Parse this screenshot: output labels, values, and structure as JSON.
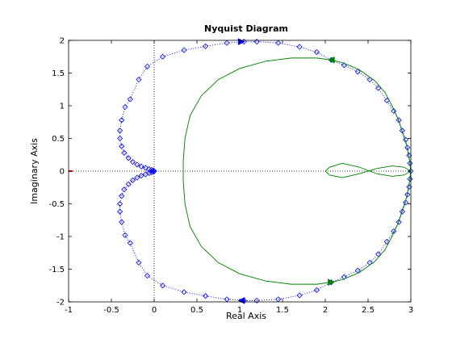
{
  "chart_data": {
    "type": "line",
    "title": "Nyquist Diagram",
    "xlabel": "Real Axis",
    "ylabel": "Imaginary Axis",
    "xlim": [
      -1,
      3
    ],
    "ylim": [
      -2,
      2
    ],
    "xticks": [
      -1,
      -0.5,
      0,
      0.5,
      1,
      1.5,
      2,
      2.5,
      3
    ],
    "xtick_labels": [
      "-1",
      "-0.5",
      "0",
      "0.5",
      "1",
      "1.5",
      "2",
      "2.5",
      "3"
    ],
    "yticks": [
      -2,
      -1.5,
      -1,
      -0.5,
      0,
      0.5,
      1,
      1.5,
      2
    ],
    "ytick_labels": [
      "-2",
      "-1.5",
      "-1",
      "-0.5",
      "0",
      "0.5",
      "1",
      "1.5",
      "2"
    ],
    "grid": false,
    "reference_lines": {
      "x": 0,
      "y": 0,
      "color": "#000000",
      "style": "dotted"
    },
    "critical_point": {
      "x": -1,
      "y": 0,
      "color": "#ff0000"
    },
    "colors": {
      "series_1": "#0000ff",
      "series_2": "#008000"
    },
    "series": [
      {
        "style": "dotted-diamond-markers",
        "color": "#0000ff",
        "points": [
          [
            0.0,
            0.0
          ],
          [
            -0.01,
            0.01
          ],
          [
            -0.03,
            0.02
          ],
          [
            -0.06,
            0.03
          ],
          [
            -0.1,
            0.05
          ],
          [
            -0.15,
            0.07
          ],
          [
            -0.2,
            0.1
          ],
          [
            -0.25,
            0.14
          ],
          [
            -0.3,
            0.2
          ],
          [
            -0.35,
            0.28
          ],
          [
            -0.38,
            0.38
          ],
          [
            -0.4,
            0.5
          ],
          [
            -0.4,
            0.62
          ],
          [
            -0.38,
            0.78
          ],
          [
            -0.34,
            0.98
          ],
          [
            -0.28,
            1.1
          ],
          [
            -0.18,
            1.4
          ],
          [
            -0.08,
            1.6
          ],
          [
            0.1,
            1.75
          ],
          [
            0.35,
            1.85
          ],
          [
            0.6,
            1.91
          ],
          [
            0.85,
            1.96
          ],
          [
            1.05,
            1.98
          ],
          [
            1.2,
            1.98
          ],
          [
            1.45,
            1.96
          ],
          [
            1.7,
            1.9
          ],
          [
            1.9,
            1.82
          ],
          [
            2.07,
            1.7
          ],
          [
            2.22,
            1.62
          ],
          [
            2.38,
            1.52
          ],
          [
            2.52,
            1.4
          ],
          [
            2.62,
            1.27
          ],
          [
            2.72,
            1.08
          ],
          [
            2.8,
            0.92
          ],
          [
            2.86,
            0.78
          ],
          [
            2.9,
            0.62
          ],
          [
            2.94,
            0.48
          ],
          [
            2.96,
            0.36
          ],
          [
            2.98,
            0.24
          ],
          [
            2.99,
            0.12
          ],
          [
            3.0,
            0.0
          ],
          [
            2.99,
            -0.12
          ],
          [
            2.98,
            -0.24
          ],
          [
            2.96,
            -0.36
          ],
          [
            2.94,
            -0.48
          ],
          [
            2.9,
            -0.62
          ],
          [
            2.86,
            -0.78
          ],
          [
            2.8,
            -0.92
          ],
          [
            2.72,
            -1.08
          ],
          [
            2.62,
            -1.27
          ],
          [
            2.52,
            -1.4
          ],
          [
            2.38,
            -1.52
          ],
          [
            2.22,
            -1.62
          ],
          [
            2.07,
            -1.7
          ],
          [
            1.9,
            -1.82
          ],
          [
            1.7,
            -1.9
          ],
          [
            1.45,
            -1.96
          ],
          [
            1.2,
            -1.98
          ],
          [
            1.05,
            -1.98
          ],
          [
            0.85,
            -1.96
          ],
          [
            0.6,
            -1.91
          ],
          [
            0.35,
            -1.85
          ],
          [
            0.1,
            -1.75
          ],
          [
            -0.08,
            -1.6
          ],
          [
            -0.18,
            -1.4
          ],
          [
            -0.28,
            -1.1
          ],
          [
            -0.34,
            -0.98
          ],
          [
            -0.38,
            -0.78
          ],
          [
            -0.4,
            -0.62
          ],
          [
            -0.4,
            -0.5
          ],
          [
            -0.38,
            -0.38
          ],
          [
            -0.35,
            -0.28
          ],
          [
            -0.3,
            -0.2
          ],
          [
            -0.25,
            -0.14
          ],
          [
            -0.2,
            -0.1
          ],
          [
            -0.15,
            -0.07
          ],
          [
            -0.1,
            -0.05
          ],
          [
            -0.06,
            -0.03
          ],
          [
            -0.03,
            -0.02
          ],
          [
            -0.01,
            -0.01
          ],
          [
            0.0,
            0.0
          ]
        ],
        "arrows": [
          {
            "x": 1.02,
            "y": 1.98,
            "direction": "right"
          },
          {
            "x": 1.02,
            "y": -1.98,
            "direction": "left"
          }
        ]
      },
      {
        "style": "solid",
        "color": "#008000",
        "points": [
          [
            3.0,
            0.0
          ],
          [
            2.98,
            0.2
          ],
          [
            2.95,
            0.4
          ],
          [
            2.9,
            0.6
          ],
          [
            2.85,
            0.8
          ],
          [
            2.78,
            1.0
          ],
          [
            2.7,
            1.2
          ],
          [
            2.58,
            1.38
          ],
          [
            2.4,
            1.55
          ],
          [
            2.2,
            1.66
          ],
          [
            2.07,
            1.7
          ],
          [
            1.9,
            1.73
          ],
          [
            1.6,
            1.73
          ],
          [
            1.3,
            1.68
          ],
          [
            1.0,
            1.57
          ],
          [
            0.75,
            1.4
          ],
          [
            0.55,
            1.15
          ],
          [
            0.42,
            0.85
          ],
          [
            0.36,
            0.5
          ],
          [
            0.34,
            0.15
          ],
          [
            0.34,
            0.0
          ],
          [
            0.34,
            -0.15
          ],
          [
            0.36,
            -0.5
          ],
          [
            0.42,
            -0.85
          ],
          [
            0.55,
            -1.15
          ],
          [
            0.75,
            -1.4
          ],
          [
            1.0,
            -1.57
          ],
          [
            1.3,
            -1.68
          ],
          [
            1.6,
            -1.73
          ],
          [
            1.9,
            -1.73
          ],
          [
            2.07,
            -1.7
          ],
          [
            2.2,
            -1.66
          ],
          [
            2.4,
            -1.55
          ],
          [
            2.58,
            -1.38
          ],
          [
            2.7,
            -1.2
          ],
          [
            2.78,
            -1.0
          ],
          [
            2.85,
            -0.8
          ],
          [
            2.9,
            -0.6
          ],
          [
            2.95,
            -0.4
          ],
          [
            2.98,
            -0.2
          ],
          [
            3.0,
            0.0
          ],
          [
            2.92,
            0.06
          ],
          [
            2.78,
            0.08
          ],
          [
            2.6,
            0.04
          ],
          [
            2.4,
            -0.04
          ],
          [
            2.2,
            -0.1
          ],
          [
            2.05,
            -0.06
          ],
          [
            2.0,
            0.0
          ],
          [
            2.05,
            0.06
          ],
          [
            2.2,
            0.12
          ],
          [
            2.4,
            0.06
          ],
          [
            2.6,
            -0.04
          ],
          [
            2.78,
            -0.08
          ],
          [
            2.92,
            -0.06
          ],
          [
            3.0,
            0.0
          ]
        ],
        "arrows": [
          {
            "x": 2.07,
            "y": 1.7,
            "direction": "left"
          },
          {
            "x": 2.07,
            "y": -1.7,
            "direction": "right"
          }
        ]
      }
    ]
  }
}
